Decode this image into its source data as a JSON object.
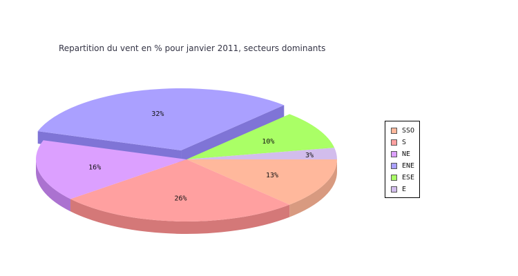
{
  "chart_data": {
    "type": "pie",
    "title": "Repartition du vent en % pour janvier 2011, secteurs dominants",
    "slices": [
      {
        "name": "SSO",
        "value": 13,
        "label": "13%",
        "color": "#ffb89c",
        "side": "#d89a80"
      },
      {
        "name": "S",
        "value": 26,
        "label": "26%",
        "color": "#ffa0a0",
        "side": "#d47878"
      },
      {
        "name": "NE",
        "value": 16,
        "label": "16%",
        "color": "#dca0ff",
        "side": "#ab72d0"
      },
      {
        "name": "ENE",
        "value": 32,
        "label": "32%",
        "color": "#aaa0ff",
        "side": "#7f74d6",
        "exploded": true
      },
      {
        "name": "ESE",
        "value": 10,
        "label": "10%",
        "color": "#aaff66",
        "side": "#88cc4c"
      },
      {
        "name": "E",
        "value": 3,
        "label": "3%",
        "color": "#d2bdec",
        "side": "#a894c2"
      }
    ],
    "legend_position": "right"
  }
}
